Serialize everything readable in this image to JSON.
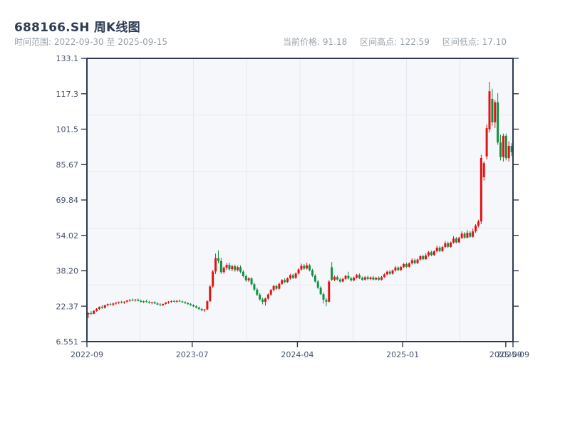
{
  "header": {
    "title": "688166.SH 周K线图",
    "subtitle": "时间范围: 2022-09-30 至 2025-09-15",
    "stats": [
      {
        "label": "当前价格:",
        "value": "91.18"
      },
      {
        "label": "区间高点:",
        "value": "122.59"
      },
      {
        "label": "区间低点:",
        "value": "17.10"
      }
    ]
  },
  "chart_data": {
    "type": "candlestick",
    "title": "688166.SH 周K线图",
    "period": "weekly",
    "date_range": [
      "2022-09-30",
      "2025-09-15"
    ],
    "current_price": 91.18,
    "range_high": 122.59,
    "range_low": 17.1,
    "ylim": [
      6.551,
      133.1
    ],
    "y_ticks": [
      "133.1",
      "117.3",
      "101.5",
      "85.67",
      "69.84",
      "54.02",
      "38.20",
      "22.37",
      "6.551"
    ],
    "x_ticks": [
      {
        "pos": 0.0,
        "label": "2022-09"
      },
      {
        "pos": 0.247,
        "label": "2023-07"
      },
      {
        "pos": 0.494,
        "label": "2024-04"
      },
      {
        "pos": 0.741,
        "label": "2025-01"
      },
      {
        "pos": 0.983,
        "label": "2025-09"
      },
      {
        "pos": 1.0,
        "label": "2025-09"
      }
    ],
    "grid": {
      "h_divisions": 5,
      "v_divisions": 8,
      "visible": true
    },
    "legend": "none",
    "colors": {
      "up": "#e01414",
      "down": "#0f9140",
      "spine": "#2d3a4e",
      "grid": "#e5e8ee",
      "plot_bg": "#f6f7fa",
      "tick_text": "#46536b"
    },
    "ohlc": [
      [
        18.8,
        19.6,
        17.1,
        19.3
      ],
      [
        19.3,
        20.2,
        18.4,
        19.0
      ],
      [
        19.0,
        20.6,
        18.8,
        20.3
      ],
      [
        20.3,
        21.5,
        19.9,
        21.2
      ],
      [
        21.2,
        22.3,
        20.6,
        22.0
      ],
      [
        22.0,
        22.8,
        21.2,
        21.6
      ],
      [
        21.6,
        23.0,
        21.3,
        22.8
      ],
      [
        22.8,
        23.6,
        22.2,
        23.3
      ],
      [
        23.3,
        23.9,
        22.6,
        23.0
      ],
      [
        23.0,
        23.9,
        22.5,
        23.6
      ],
      [
        23.6,
        24.3,
        23.0,
        23.9
      ],
      [
        23.9,
        24.5,
        23.3,
        24.2
      ],
      [
        24.2,
        24.8,
        23.6,
        24.0
      ],
      [
        24.0,
        24.6,
        23.4,
        24.4
      ],
      [
        24.4,
        25.1,
        23.9,
        24.9
      ],
      [
        24.9,
        25.5,
        24.3,
        25.2
      ],
      [
        25.2,
        25.8,
        24.6,
        25.0
      ],
      [
        25.0,
        25.6,
        24.4,
        25.3
      ],
      [
        25.3,
        25.8,
        24.5,
        24.8
      ],
      [
        24.8,
        25.3,
        24.0,
        24.3
      ],
      [
        24.3,
        24.9,
        23.7,
        24.6
      ],
      [
        24.6,
        25.2,
        24.0,
        24.2
      ],
      [
        24.2,
        24.8,
        23.5,
        23.8
      ],
      [
        23.8,
        24.4,
        23.2,
        24.1
      ],
      [
        24.1,
        24.6,
        23.3,
        23.6
      ],
      [
        23.6,
        24.1,
        22.8,
        23.1
      ],
      [
        23.1,
        23.7,
        22.4,
        22.8
      ],
      [
        22.8,
        23.6,
        22.5,
        23.4
      ],
      [
        23.4,
        24.2,
        23.0,
        24.0
      ],
      [
        24.0,
        24.7,
        23.5,
        24.4
      ],
      [
        24.4,
        25.0,
        23.9,
        24.7
      ],
      [
        24.7,
        25.2,
        24.1,
        24.4
      ],
      [
        24.4,
        25.0,
        23.9,
        24.8
      ],
      [
        24.8,
        25.3,
        24.2,
        24.5
      ],
      [
        24.5,
        24.9,
        23.8,
        24.1
      ],
      [
        24.1,
        24.6,
        23.4,
        23.7
      ],
      [
        23.7,
        24.2,
        23.0,
        23.3
      ],
      [
        23.3,
        23.8,
        22.5,
        22.8
      ],
      [
        22.8,
        23.3,
        22.0,
        22.3
      ],
      [
        22.3,
        22.8,
        21.4,
        21.7
      ],
      [
        21.7,
        22.2,
        20.8,
        21.1
      ],
      [
        21.1,
        21.6,
        20.2,
        20.5
      ],
      [
        20.5,
        21.2,
        19.8,
        20.9
      ],
      [
        20.9,
        25.0,
        20.6,
        24.6
      ],
      [
        24.6,
        31.8,
        24.2,
        31.2
      ],
      [
        31.2,
        38.6,
        30.5,
        37.9
      ],
      [
        37.9,
        45.9,
        36.8,
        43.8
      ],
      [
        43.8,
        47.3,
        41.5,
        42.6
      ],
      [
        42.6,
        44.0,
        36.8,
        37.6
      ],
      [
        37.6,
        40.2,
        36.9,
        39.5
      ],
      [
        39.5,
        41.6,
        38.6,
        40.8
      ],
      [
        40.8,
        41.9,
        38.2,
        38.9
      ],
      [
        38.9,
        40.9,
        38.0,
        40.2
      ],
      [
        40.2,
        41.0,
        37.8,
        38.5
      ],
      [
        38.5,
        40.5,
        37.9,
        39.8
      ],
      [
        39.8,
        40.6,
        37.2,
        37.8
      ],
      [
        37.8,
        38.5,
        35.2,
        35.8
      ],
      [
        35.8,
        36.5,
        33.3,
        33.9
      ],
      [
        33.9,
        35.4,
        33.2,
        34.8
      ],
      [
        34.8,
        35.3,
        31.6,
        32.2
      ],
      [
        32.2,
        32.9,
        29.2,
        29.8
      ],
      [
        29.8,
        30.6,
        26.9,
        27.5
      ],
      [
        27.5,
        28.2,
        24.8,
        25.4
      ],
      [
        25.4,
        26.1,
        23.2,
        24.3
      ],
      [
        24.3,
        26.2,
        22.6,
        25.8
      ],
      [
        25.8,
        28.1,
        25.2,
        27.6
      ],
      [
        27.6,
        30.1,
        27.0,
        29.6
      ],
      [
        29.6,
        31.9,
        29.0,
        31.4
      ],
      [
        31.4,
        32.0,
        29.6,
        30.2
      ],
      [
        30.2,
        32.9,
        29.8,
        32.4
      ],
      [
        32.4,
        34.5,
        31.8,
        34.0
      ],
      [
        34.0,
        34.8,
        32.6,
        33.2
      ],
      [
        33.2,
        35.2,
        32.8,
        34.8
      ],
      [
        34.8,
        36.8,
        34.2,
        36.2
      ],
      [
        36.2,
        36.9,
        34.5,
        35.0
      ],
      [
        35.0,
        37.5,
        34.6,
        37.0
      ],
      [
        37.0,
        39.3,
        36.5,
        38.8
      ],
      [
        38.8,
        41.4,
        38.2,
        40.4
      ],
      [
        40.4,
        41.2,
        38.6,
        39.2
      ],
      [
        39.2,
        41.8,
        38.8,
        40.6
      ],
      [
        40.6,
        41.3,
        37.9,
        38.4
      ],
      [
        38.4,
        39.1,
        35.5,
        36.0
      ],
      [
        36.0,
        36.7,
        32.9,
        33.4
      ],
      [
        33.4,
        34.1,
        30.1,
        30.6
      ],
      [
        30.6,
        31.3,
        27.3,
        27.8
      ],
      [
        27.8,
        28.5,
        23.6,
        25.2
      ],
      [
        25.2,
        25.9,
        22.4,
        24.4
      ],
      [
        24.4,
        34.0,
        24.0,
        33.4
      ],
      [
        39.8,
        42.1,
        33.6,
        34.2
      ],
      [
        34.2,
        36.0,
        33.6,
        35.4
      ],
      [
        35.4,
        36.1,
        33.8,
        34.3
      ],
      [
        34.3,
        35.0,
        32.8,
        33.4
      ],
      [
        33.4,
        35.1,
        33.0,
        34.6
      ],
      [
        34.6,
        36.4,
        34.1,
        35.9
      ],
      [
        35.9,
        37.8,
        34.3,
        34.8
      ],
      [
        34.8,
        35.5,
        33.4,
        33.9
      ],
      [
        33.9,
        35.6,
        33.5,
        35.1
      ],
      [
        35.1,
        36.8,
        34.7,
        36.3
      ],
      [
        36.3,
        37.0,
        34.5,
        35.0
      ],
      [
        35.0,
        35.7,
        33.7,
        34.2
      ],
      [
        34.2,
        35.8,
        33.8,
        35.3
      ],
      [
        35.3,
        36.0,
        34.0,
        34.5
      ],
      [
        34.5,
        35.7,
        34.0,
        35.2
      ],
      [
        35.2,
        35.9,
        33.8,
        34.3
      ],
      [
        34.3,
        35.5,
        33.9,
        35.0
      ],
      [
        35.0,
        35.7,
        33.7,
        34.2
      ],
      [
        34.2,
        35.9,
        33.8,
        35.4
      ],
      [
        35.4,
        37.1,
        35.0,
        36.6
      ],
      [
        36.6,
        38.3,
        36.1,
        37.8
      ],
      [
        37.8,
        38.5,
        36.4,
        36.9
      ],
      [
        36.9,
        38.8,
        36.5,
        38.3
      ],
      [
        38.3,
        40.4,
        37.9,
        39.6
      ],
      [
        39.6,
        40.2,
        38.0,
        38.5
      ],
      [
        38.5,
        40.4,
        38.1,
        39.9
      ],
      [
        39.9,
        41.7,
        39.4,
        41.2
      ],
      [
        41.2,
        41.9,
        39.5,
        40.0
      ],
      [
        40.0,
        42.0,
        39.6,
        41.5
      ],
      [
        41.5,
        43.8,
        41.0,
        42.9
      ],
      [
        42.9,
        43.6,
        41.1,
        41.6
      ],
      [
        41.6,
        43.7,
        41.2,
        43.2
      ],
      [
        43.2,
        45.2,
        42.7,
        44.7
      ],
      [
        44.7,
        45.4,
        42.9,
        43.4
      ],
      [
        43.4,
        46.0,
        43.0,
        45.0
      ],
      [
        45.0,
        47.0,
        44.5,
        46.5
      ],
      [
        46.5,
        47.2,
        44.7,
        45.2
      ],
      [
        45.2,
        47.4,
        44.8,
        46.9
      ],
      [
        46.9,
        49.4,
        46.4,
        48.5
      ],
      [
        48.5,
        49.2,
        46.5,
        47.0
      ],
      [
        47.0,
        49.3,
        46.6,
        48.8
      ],
      [
        48.8,
        51.5,
        48.3,
        50.5
      ],
      [
        50.5,
        51.2,
        48.4,
        48.9
      ],
      [
        48.9,
        51.3,
        48.5,
        50.8
      ],
      [
        50.8,
        53.6,
        50.3,
        52.6
      ],
      [
        52.6,
        53.3,
        50.4,
        50.9
      ],
      [
        50.9,
        53.4,
        50.5,
        52.9
      ],
      [
        52.9,
        55.8,
        52.4,
        54.8
      ],
      [
        54.8,
        55.5,
        52.5,
        53.0
      ],
      [
        53.0,
        56.4,
        52.6,
        55.2
      ],
      [
        55.2,
        55.9,
        52.9,
        53.4
      ],
      [
        53.4,
        57.0,
        53.0,
        55.8
      ],
      [
        55.8,
        59.0,
        55.2,
        58.4
      ],
      [
        58.4,
        61.0,
        57.6,
        60.2
      ],
      [
        60.2,
        90.0,
        59.0,
        88.6
      ],
      [
        80.0,
        87.0,
        78.5,
        86.3
      ],
      [
        89.3,
        103.5,
        88.0,
        101.9
      ],
      [
        101.4,
        122.59,
        100.0,
        118.4
      ],
      [
        115.0,
        119.5,
        103.0,
        104.5
      ],
      [
        104.5,
        114.5,
        102.0,
        113.5
      ],
      [
        113.5,
        117.5,
        94.5,
        95.5
      ],
      [
        95.5,
        99.0,
        87.5,
        89.0
      ],
      [
        89.0,
        99.5,
        87.0,
        98.5
      ],
      [
        98.5,
        99.5,
        87.5,
        88.5
      ],
      [
        88.5,
        96.0,
        87.0,
        94.0
      ],
      [
        94.0,
        95.2,
        89.5,
        91.18
      ]
    ]
  }
}
